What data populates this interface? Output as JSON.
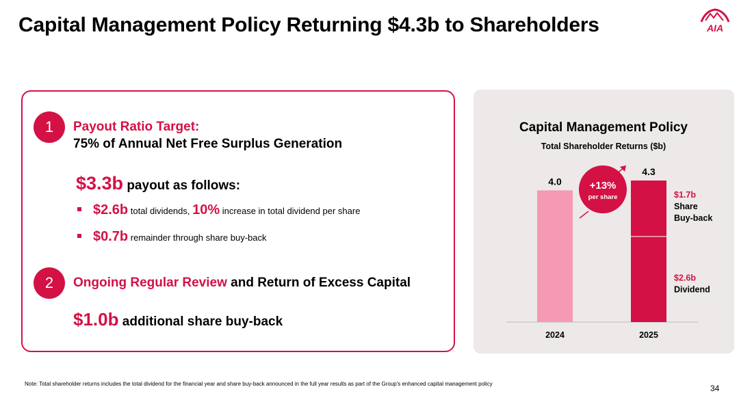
{
  "header": {
    "title": "Capital Management Policy Returning $4.3b to Shareholders",
    "logo_text": "AIA"
  },
  "left_card": {
    "section1": {
      "number": "1",
      "title": "Payout Ratio Target:",
      "subtitle": "75% of Annual Net Free Surplus Generation",
      "payout_amount": "$3.3b",
      "payout_text": "payout as follows:",
      "bullets": [
        {
          "amount": "$2.6b",
          "text_a": "total dividends,",
          "highlight": "10%",
          "text_b": "increase in total dividend per share"
        },
        {
          "amount": "$0.7b",
          "text_a": "remainder through share buy-back"
        }
      ]
    },
    "section2": {
      "number": "2",
      "title_highlight": "Ongoing Regular Review",
      "title_rest": "and Return of Excess Capital",
      "extra_amount": "$1.0b",
      "extra_text": "additional share buy-back"
    }
  },
  "colors": {
    "brand": "#d31145",
    "bar_2024": "#f59ab2",
    "panel_bg": "#ece9e8"
  },
  "chart_data": {
    "type": "bar",
    "title": "Capital Management Policy",
    "subtitle": "Total Shareholder Returns ($b)",
    "categories": [
      "2024",
      "2025"
    ],
    "totals": [
      "4.0",
      "4.3"
    ],
    "series": [
      {
        "name": "Dividend",
        "values": [
          4.0,
          2.6
        ]
      },
      {
        "name": "Share Buy-back",
        "values": [
          0,
          1.7
        ]
      }
    ],
    "segment_labels": [
      {
        "value": "$1.7b",
        "line1": "Share",
        "line2": "Buy-back"
      },
      {
        "value": "$2.6b",
        "line1": "Dividend"
      }
    ],
    "annotation": {
      "value": "+13%",
      "text": "per share"
    },
    "ylim": [
      0,
      4.3
    ]
  },
  "footer": {
    "note": "Note: Total shareholder returns includes the total dividend for the financial year and share buy-back announced in the full year results as part of the Group's enhanced capital management policy",
    "page_number": "34"
  }
}
